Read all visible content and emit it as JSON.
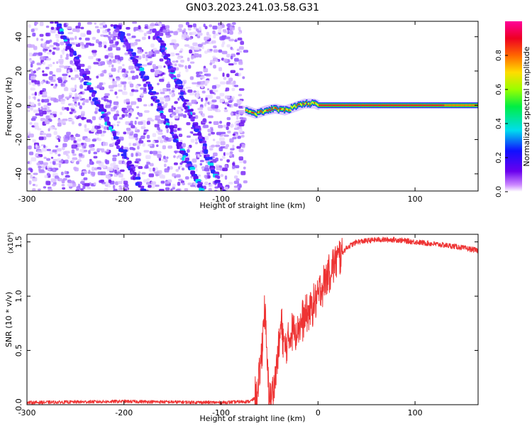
{
  "title": "GN03.2023.241.03.58.G31",
  "colors": {
    "snr_line": "#ee3333",
    "background": "#ffffff",
    "axis": "#000000"
  },
  "chart_data": [
    {
      "type": "heatmap",
      "xlabel": "Height of straight line (km)",
      "ylabel": "Frequency (Hz)",
      "xlim": [
        -300,
        165
      ],
      "ylim": [
        -50,
        49
      ],
      "x_ticks": [
        -300,
        -200,
        -100,
        0,
        100
      ],
      "y_ticks": [
        -40,
        -20,
        0,
        20,
        40
      ],
      "colorbar": {
        "label": "Normalized spectral amplitude",
        "range": [
          0,
          1
        ],
        "ticks": [
          "0.0",
          "0.2",
          "0.4",
          "0.6",
          "0.8"
        ],
        "colormap": "rainbow (white → purple → blue → cyan → green → yellow → red → magenta)"
      },
      "features": {
        "noise_region_x": [
          -300,
          -77
        ],
        "carrier_track": [
          {
            "x": -75,
            "y": -3
          },
          {
            "x": -65,
            "y": -5
          },
          {
            "x": -55,
            "y": -3
          },
          {
            "x": -45,
            "y": -2
          },
          {
            "x": -35,
            "y": -3
          },
          {
            "x": -25,
            "y": -1
          },
          {
            "x": -15,
            "y": 1
          },
          {
            "x": -5,
            "y": 1
          },
          {
            "x": 0,
            "y": 0
          },
          {
            "x": 50,
            "y": 0
          },
          {
            "x": 100,
            "y": 0
          },
          {
            "x": 165,
            "y": 0
          }
        ],
        "diagonal_streaks": [
          {
            "from": {
              "x": -270,
              "y": 48
            },
            "to": {
              "x": -182,
              "y": -50
            }
          },
          {
            "from": {
              "x": -210,
              "y": 48
            },
            "to": {
              "x": -120,
              "y": -50
            }
          },
          {
            "from": {
              "x": -170,
              "y": 45
            },
            "to": {
              "x": -100,
              "y": -50
            }
          }
        ]
      }
    },
    {
      "type": "line",
      "xlabel": "Height of straight line (km)",
      "ylabel": "SNR (10 * v/v)",
      "y_multiplier": "(x10⁴)",
      "xlim": [
        -300,
        165
      ],
      "ylim": [
        0,
        1.57
      ],
      "x_ticks": [
        -300,
        -200,
        -100,
        0,
        100
      ],
      "y_ticks": [
        "0.0",
        "0.5",
        "1.0",
        "1.5"
      ],
      "series": [
        {
          "x": [
            -300,
            -250,
            -200,
            -150,
            -100,
            -70,
            -62,
            -58,
            -55,
            -52,
            -50,
            -47,
            -44,
            -40,
            -38,
            -34,
            -30,
            -25,
            -20,
            -10,
            0,
            10,
            20,
            30,
            40,
            60,
            80,
            100,
            120,
            140,
            165
          ],
          "y": [
            0.02,
            0.025,
            0.03,
            0.025,
            0.02,
            0.03,
            0.08,
            0.5,
            0.9,
            0.3,
            0.08,
            0.1,
            0.25,
            0.55,
            0.75,
            0.5,
            0.62,
            0.7,
            0.72,
            0.85,
            1.0,
            1.2,
            1.35,
            1.45,
            1.5,
            1.52,
            1.52,
            1.5,
            1.48,
            1.46,
            1.42
          ]
        }
      ]
    }
  ]
}
